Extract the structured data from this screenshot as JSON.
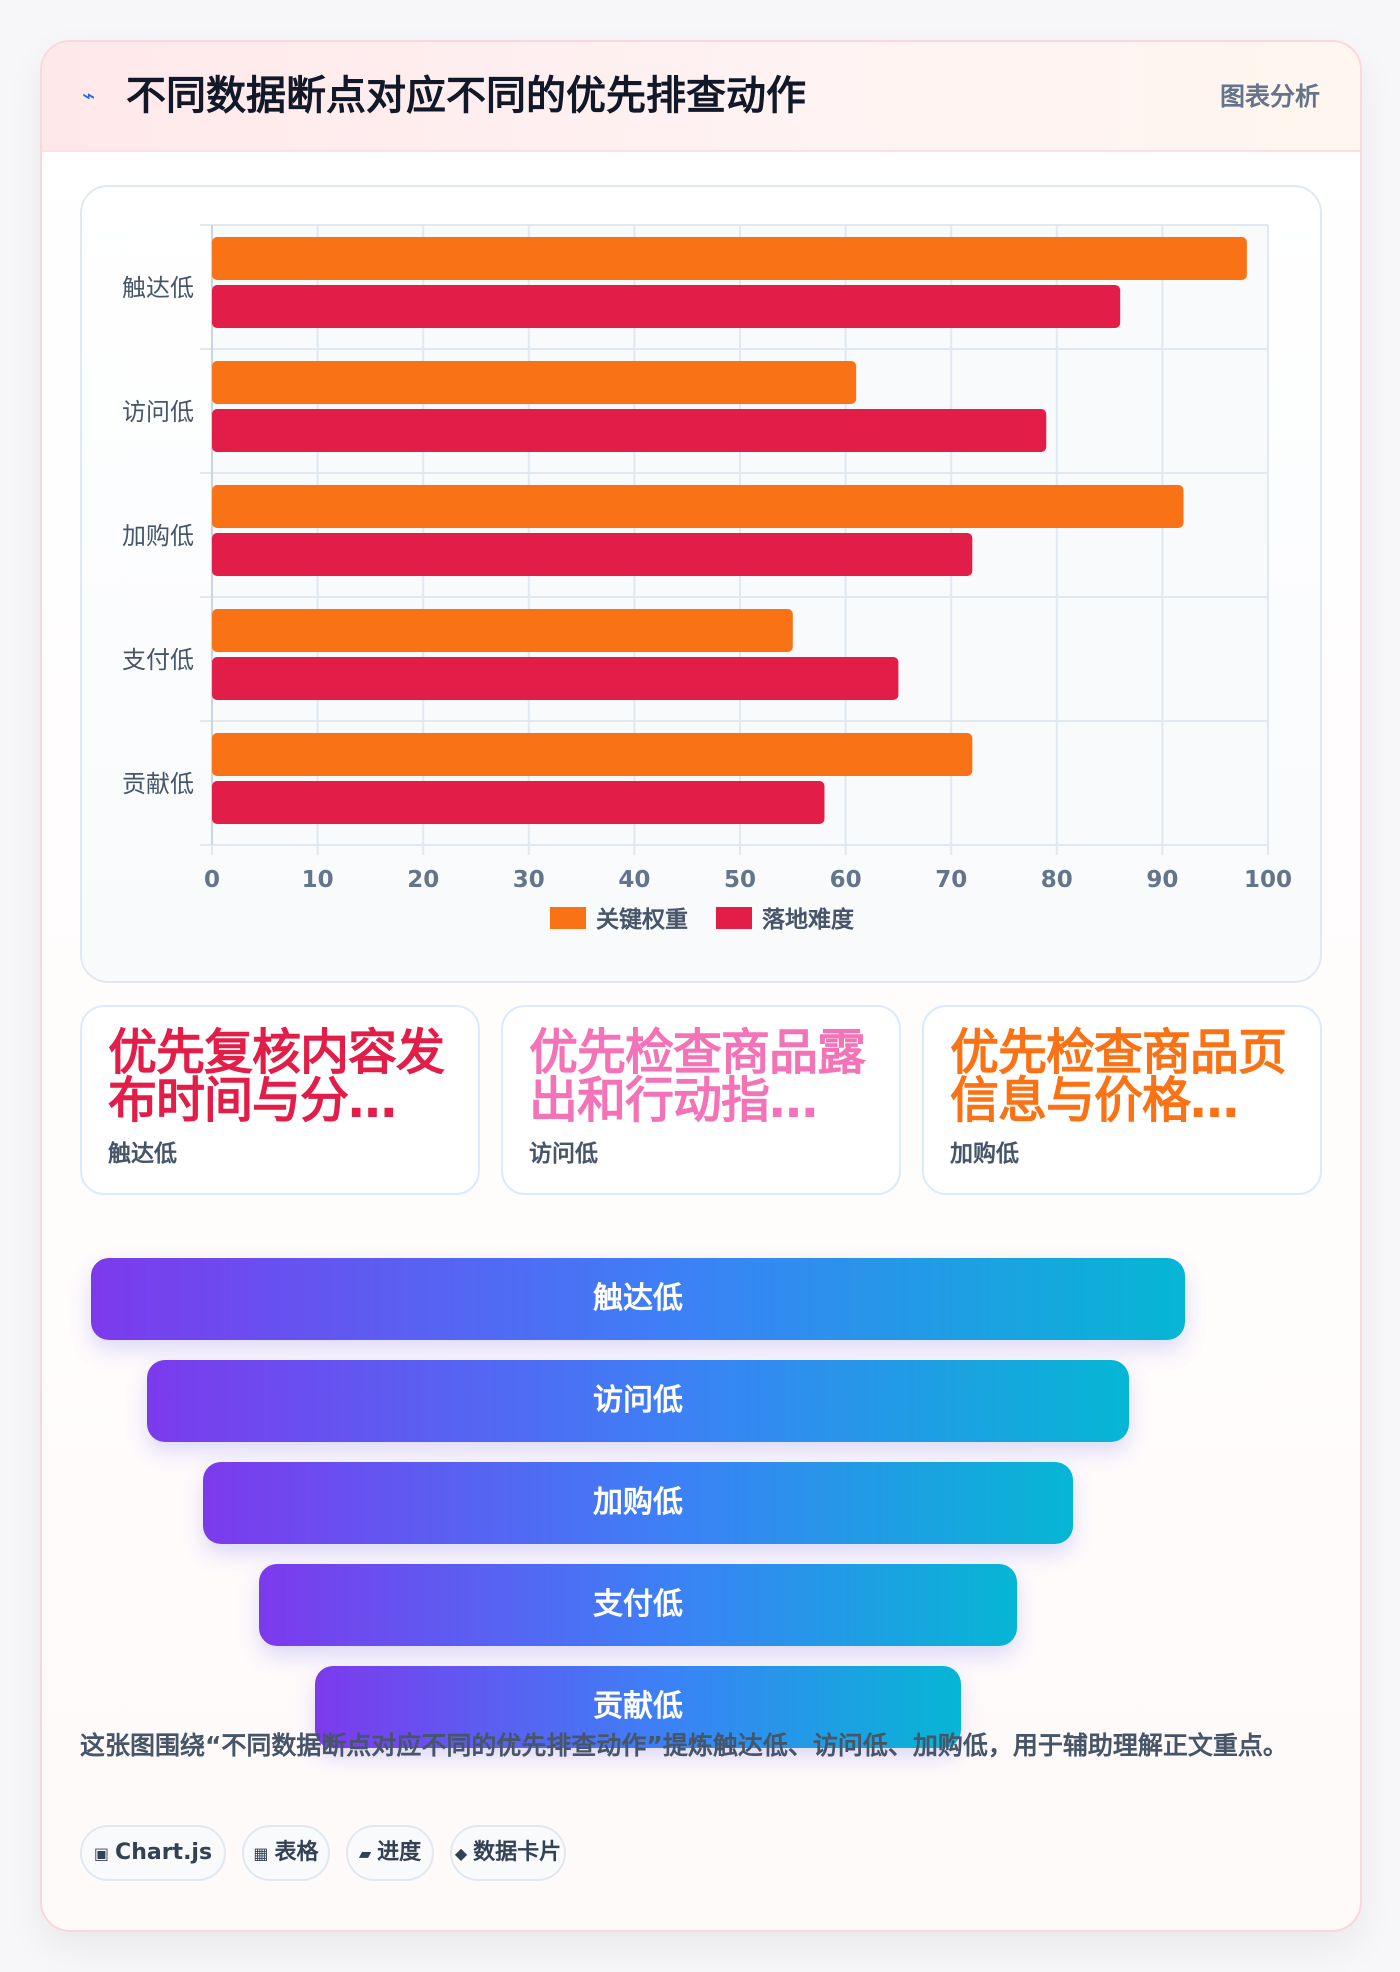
{
  "header": {
    "title": "不同数据断点对应不同的优先排查动作",
    "badge": "图表分析",
    "icon": "lightning-icon"
  },
  "chart_data": {
    "type": "bar",
    "orientation": "horizontal",
    "categories": [
      "触达低",
      "访问低",
      "加购低",
      "支付低",
      "贡献低"
    ],
    "series": [
      {
        "name": "关键权重",
        "color": "#f97316",
        "values": [
          98,
          61,
          92,
          55,
          72
        ]
      },
      {
        "name": "落地难度",
        "color": "#e11d48",
        "values": [
          86,
          79,
          72,
          65,
          58
        ]
      }
    ],
    "xlim": [
      0,
      100
    ],
    "xticks": [
      0,
      10,
      20,
      30,
      40,
      50,
      60,
      70,
      80,
      90,
      100
    ],
    "grid": true,
    "legend": "bottom"
  },
  "cards": [
    {
      "text": "优先复核内容发布时间与分…",
      "sub": "触达低",
      "color": "#e11d48"
    },
    {
      "text": "优先检查商品露出和行动指…",
      "sub": "访问低",
      "color": "#f472b6"
    },
    {
      "text": "优先检查商品页信息与价格…",
      "sub": "加购低",
      "color": "#f97316"
    }
  ],
  "funnel": [
    "触达低",
    "访问低",
    "加购低",
    "支付低",
    "贡献低"
  ],
  "description": "这张图围绕“不同数据断点对应不同的优先排查动作”提炼触达低、访问低、加购低，用于辅助理解正文重点。",
  "tags": [
    {
      "icon": "▣",
      "label": "Chart.js"
    },
    {
      "icon": "▦",
      "label": "表格"
    },
    {
      "icon": "▰",
      "label": "进度"
    },
    {
      "icon": "◆",
      "label": "数据卡片"
    }
  ]
}
